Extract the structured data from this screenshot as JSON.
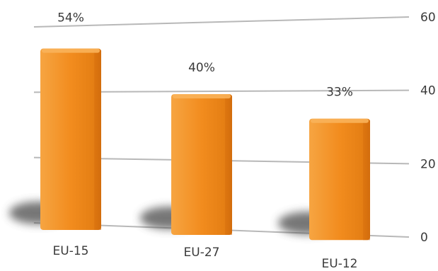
{
  "chart_data": {
    "type": "bar",
    "categories": [
      "EU-15",
      "EU-27",
      "EU-12"
    ],
    "values": [
      54,
      40,
      33
    ],
    "data_labels": [
      "54%",
      "40%",
      "33%"
    ],
    "y_ticks": [
      "0",
      "20",
      "40",
      "60"
    ],
    "ylim": [
      0,
      60
    ],
    "grid": true,
    "y_axis_position": "right",
    "colors": {
      "bar": "#f28c1e",
      "bar_light": "#f9b25a",
      "bar_dark": "#d8700d",
      "grid": "#b8b8b8",
      "shadow": "#4a4a4a"
    }
  }
}
